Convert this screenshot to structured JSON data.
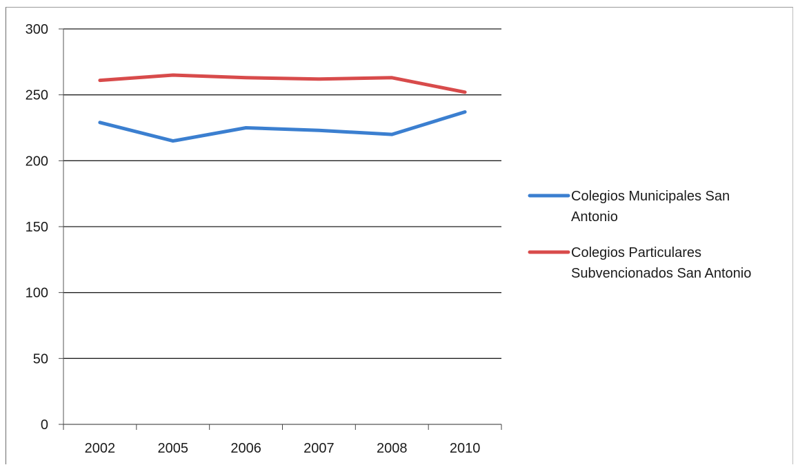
{
  "chart_data": {
    "type": "line",
    "title": "",
    "xlabel": "",
    "ylabel": "",
    "categories": [
      "2002",
      "2005",
      "2006",
      "2007",
      "2008",
      "2010"
    ],
    "ylim": [
      0,
      300
    ],
    "yticks": [
      0,
      50,
      100,
      150,
      200,
      250,
      300
    ],
    "grid": true,
    "legend_position": "right",
    "series": [
      {
        "name": "Colegios Municipales San Antonio",
        "legend_lines": [
          "Colegios Municipales San",
          "Antonio"
        ],
        "color": "#3b7fd0",
        "values": [
          229,
          215,
          225,
          223,
          220,
          237
        ]
      },
      {
        "name": "Colegios Particulares Subvencionados San Antonio",
        "legend_lines": [
          "Colegios Particulares",
          "Subvencionados San Antonio"
        ],
        "color": "#d84b4b",
        "values": [
          261,
          265,
          263,
          262,
          263,
          252
        ]
      }
    ]
  }
}
